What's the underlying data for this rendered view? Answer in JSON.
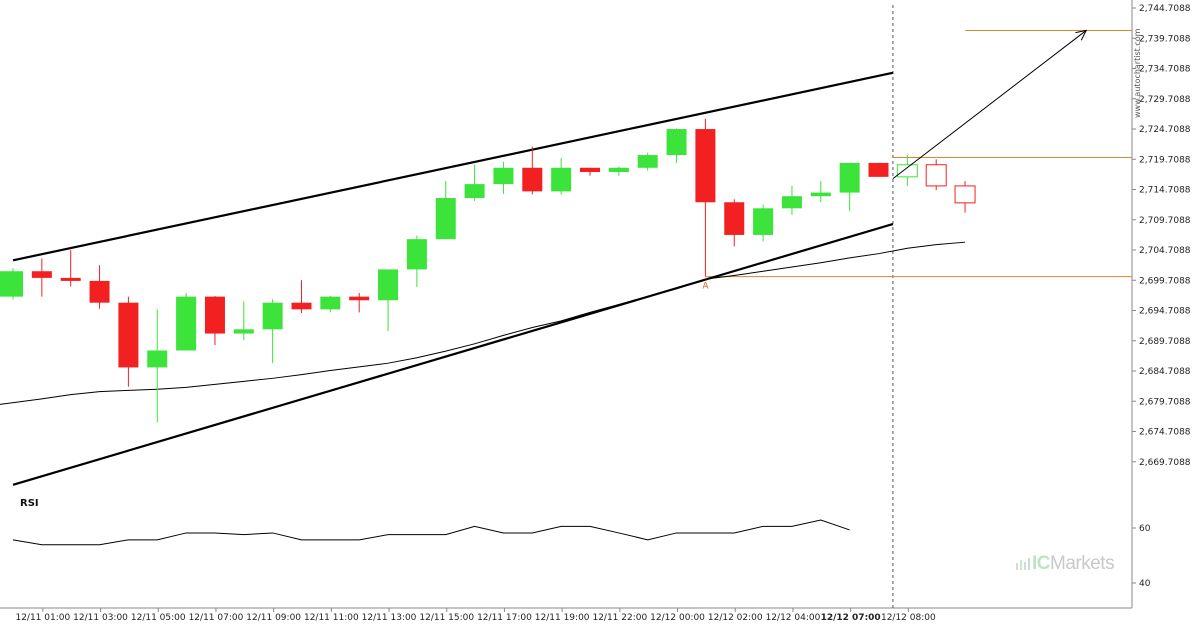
{
  "chart_data": {
    "type": "candlestick",
    "price_ylim": [
      2664.7088,
      2744.7088
    ],
    "price_ticks": [
      "2,744.7088",
      "2,739.7088",
      "2,734.7088",
      "2,729.7088",
      "2,724.7088",
      "2,719.7088",
      "2,714.7088",
      "2,709.7088",
      "2,704.7088",
      "2,699.7088",
      "2,694.7088",
      "2,689.7088",
      "2,684.7088",
      "2,679.7088",
      "2,674.7088",
      "2,669.7088"
    ],
    "x_labels": [
      "12/11 01:00",
      "12/11 03:00",
      "12/11 05:00",
      "12/11 07:00",
      "12/11 09:00",
      "12/11 11:00",
      "12/11 13:00",
      "12/11 15:00",
      "12/11 17:00",
      "12/11 19:00",
      "12/11 22:00",
      "12/12 00:00",
      "12/12 02:00",
      "12/12 04:00",
      "12/12 07:00",
      "12/12 08:00"
    ],
    "x_label_bold": "12/12 07:00",
    "bull_color": "#3be33b",
    "bear_color": "#f22020",
    "candles": [
      {
        "o": 2697.0,
        "h": 2701.7,
        "l": 2696.5,
        "c": 2701.2
      },
      {
        "o": 2701.2,
        "h": 2703.3,
        "l": 2697.0,
        "c": 2700.1
      },
      {
        "o": 2700.1,
        "h": 2704.7,
        "l": 2698.7,
        "c": 2699.6
      },
      {
        "o": 2699.6,
        "h": 2702.2,
        "l": 2695.0,
        "c": 2696.0
      },
      {
        "o": 2696.0,
        "h": 2697.0,
        "l": 2682.1,
        "c": 2685.3
      },
      {
        "o": 2685.3,
        "h": 2694.9,
        "l": 2676.2,
        "c": 2688.1
      },
      {
        "o": 2688.1,
        "h": 2697.6,
        "l": 2688.1,
        "c": 2697.0
      },
      {
        "o": 2697.0,
        "h": 2697.1,
        "l": 2689.0,
        "c": 2690.9
      },
      {
        "o": 2690.9,
        "h": 2696.2,
        "l": 2689.8,
        "c": 2691.6
      },
      {
        "o": 2691.6,
        "h": 2696.6,
        "l": 2686.0,
        "c": 2696.0
      },
      {
        "o": 2696.0,
        "h": 2699.7,
        "l": 2694.3,
        "c": 2694.9
      },
      {
        "o": 2694.9,
        "h": 2697.1,
        "l": 2694.4,
        "c": 2697.0
      },
      {
        "o": 2697.0,
        "h": 2697.6,
        "l": 2694.4,
        "c": 2696.4
      },
      {
        "o": 2696.4,
        "h": 2701.5,
        "l": 2691.3,
        "c": 2701.5
      },
      {
        "o": 2701.5,
        "h": 2707.1,
        "l": 2698.6,
        "c": 2706.5
      },
      {
        "o": 2706.5,
        "h": 2716.1,
        "l": 2706.5,
        "c": 2713.3
      },
      {
        "o": 2713.3,
        "h": 2718.8,
        "l": 2712.8,
        "c": 2715.6
      },
      {
        "o": 2715.6,
        "h": 2719.3,
        "l": 2714.0,
        "c": 2718.3
      },
      {
        "o": 2718.3,
        "h": 2721.8,
        "l": 2713.9,
        "c": 2714.4
      },
      {
        "o": 2714.4,
        "h": 2719.9,
        "l": 2713.9,
        "c": 2718.3
      },
      {
        "o": 2718.3,
        "h": 2718.3,
        "l": 2717.0,
        "c": 2717.6
      },
      {
        "o": 2717.6,
        "h": 2718.5,
        "l": 2717.0,
        "c": 2718.3
      },
      {
        "o": 2718.3,
        "h": 2720.8,
        "l": 2717.8,
        "c": 2720.4
      },
      {
        "o": 2720.4,
        "h": 2724.8,
        "l": 2719.1,
        "c": 2724.7
      },
      {
        "o": 2724.7,
        "h": 2726.4,
        "l": 2700.3,
        "c": 2712.6
      },
      {
        "o": 2712.6,
        "h": 2713.1,
        "l": 2705.3,
        "c": 2707.2
      },
      {
        "o": 2707.2,
        "h": 2712.2,
        "l": 2706.1,
        "c": 2711.6
      },
      {
        "o": 2711.6,
        "h": 2715.3,
        "l": 2710.5,
        "c": 2713.6
      },
      {
        "o": 2713.6,
        "h": 2716.1,
        "l": 2712.6,
        "c": 2714.2
      },
      {
        "o": 2714.2,
        "h": 2719.1,
        "l": 2711.1,
        "c": 2719.1
      },
      {
        "o": 2719.1,
        "h": 2719.1,
        "l": 2716.8,
        "c": 2716.8
      },
      {
        "o": 2716.8,
        "h": 2720.4,
        "l": 2715.3,
        "c": 2718.8,
        "hollow": true
      },
      {
        "o": 2718.8,
        "h": 2719.7,
        "l": 2714.6,
        "c": 2715.3,
        "hollow": true
      },
      {
        "o": 2715.3,
        "h": 2716.1,
        "l": 2710.9,
        "c": 2712.5,
        "hollow": true
      }
    ],
    "moving_average": [
      2679.2,
      2680.1,
      2680.8,
      2681.3,
      2681.5,
      2681.7,
      2682.0,
      2682.5,
      2683.0,
      2683.5,
      2684.1,
      2684.8,
      2685.4,
      2686.0,
      2686.9,
      2688.0,
      2689.2,
      2690.6,
      2691.9,
      2693.0,
      2694.4,
      2695.7,
      2697.0,
      2698.3,
      2699.9,
      2700.5,
      2701.2,
      2701.9,
      2702.6,
      2703.4,
      2704.1,
      2705.0,
      2705.6,
      2706.0
    ],
    "rsi": {
      "values": [
        55.7,
        53.9,
        53.9,
        53.9,
        55.7,
        55.7,
        58.2,
        58.2,
        57.6,
        58.2,
        55.7,
        55.7,
        55.7,
        57.6,
        57.6,
        57.6,
        60.6,
        58.2,
        58.2,
        60.6,
        60.6,
        58.2,
        55.7,
        58.2,
        58.2,
        58.2,
        60.6,
        60.6,
        62.9,
        59.3
      ],
      "ylim": [
        32,
        72
      ],
      "ticks": [
        "60",
        "40"
      ]
    },
    "channel": {
      "upper": [
        [
          0,
          2703.0
        ],
        [
          30.5,
          2734.0
        ]
      ],
      "lower": [
        [
          0,
          2665.9
        ],
        [
          30.5,
          2709.0
        ]
      ]
    },
    "forecast_arrow": {
      "from": [
        30.5,
        2716.5
      ],
      "to": [
        37.2,
        2741.0
      ]
    },
    "levels": {
      "support": 2700.3,
      "resistance": 2720.0,
      "target": 2741.0
    },
    "point_label": "A"
  },
  "rsi_label": "RSI",
  "watermark": "www.autochartist.com",
  "brand": {
    "part1": "IC",
    "part2": "Markets"
  }
}
